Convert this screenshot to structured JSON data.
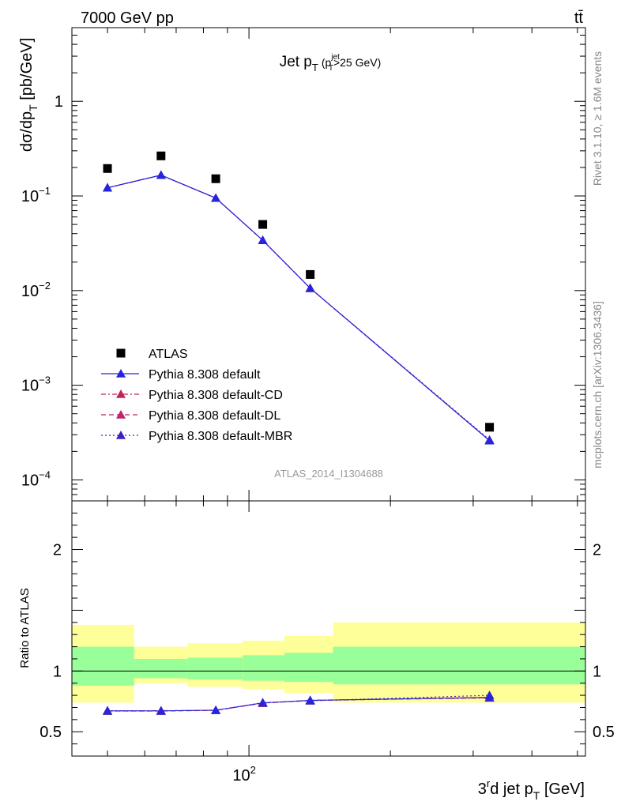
{
  "header": {
    "energy_label": "7000 GeV pp",
    "process_label": "tt̄"
  },
  "side_labels": {
    "rivet": "Rivet 3.1.10, ≥ 1.6M events",
    "mcplots": "mcplots.cern.ch [arXiv:1306.3436]"
  },
  "analysis_id": "ATLAS_2014_I1304688",
  "chart_data": [
    {
      "type": "scatter",
      "title": "Jet p_T (p_T^jet>25 GeV)",
      "title_main": "Jet p",
      "title_sub": "T",
      "title_paren_open": "(p",
      "title_paren_sup": "jet",
      "title_paren_sub": "T",
      "title_paren_rest": ">25 GeV)",
      "ylabel": "dσ/dp_T [pb/GeV]",
      "ylabel_main": "dσ/dp",
      "ylabel_sub": "T",
      "ylabel_rest": " [pb/GeV]",
      "xscale": "log",
      "yscale": "log",
      "xlim": [
        42,
        520
      ],
      "ylim": [
        6e-05,
        6
      ],
      "x": [
        50,
        65,
        85,
        107,
        135,
        325
      ],
      "xtick_major": [
        100
      ],
      "xtick_major_labels": [
        "10"
      ],
      "xtick_major_exp": [
        "2"
      ],
      "ytick_labels": [
        {
          "value": 1,
          "base": "1",
          "exp": ""
        },
        {
          "value": 0.1,
          "base": "10",
          "exp": "−1"
        },
        {
          "value": 0.01,
          "base": "10",
          "exp": "−2"
        },
        {
          "value": 0.001,
          "base": "10",
          "exp": "−3"
        },
        {
          "value": 0.0001,
          "base": "10",
          "exp": "−4"
        }
      ],
      "legend_placement": "bottom-left",
      "series": [
        {
          "name": "ATLAS",
          "marker": "square",
          "color": "#000000",
          "line": "none",
          "values": [
            0.195,
            0.265,
            0.152,
            0.05,
            0.0148,
            0.00036
          ]
        },
        {
          "name": "Pythia 8.308 default",
          "marker": "triangle",
          "color": "#2525dd",
          "line": "solid",
          "values": [
            0.122,
            0.166,
            0.095,
            0.034,
            0.0106,
            0.00026
          ]
        },
        {
          "name": "Pythia 8.308 default-CD",
          "marker": "triangle",
          "color": "#c0245c",
          "line": "dashdot",
          "values": [
            0.122,
            0.166,
            0.095,
            0.034,
            0.0106,
            0.00026
          ]
        },
        {
          "name": "Pythia 8.308 default-DL",
          "marker": "triangle",
          "color": "#c0246c",
          "line": "dashed",
          "values": [
            0.122,
            0.166,
            0.095,
            0.034,
            0.0106,
            0.00026
          ]
        },
        {
          "name": "Pythia 8.308 default-MBR",
          "marker": "triangle",
          "color": "#4020c0",
          "line": "dotted",
          "values": [
            0.122,
            0.166,
            0.095,
            0.034,
            0.0106,
            0.000265
          ]
        }
      ]
    },
    {
      "type": "scatter",
      "ylabel": "Ratio to ATLAS",
      "xlabel": "3^rd jet p_T [GeV]",
      "xlabel_main": "3",
      "xlabel_sup": "r",
      "xlabel_mid": "d jet p",
      "xlabel_sub": "T",
      "xlabel_rest": " [GeV]",
      "xscale": "log",
      "xlim": [
        42,
        520
      ],
      "ylim": [
        0.3,
        2.4
      ],
      "ytick_labels": [
        {
          "value": 0.5,
          "label": "0.5"
        },
        {
          "value": 1,
          "label": "1"
        },
        {
          "value": 2,
          "label": "2"
        }
      ],
      "bin_edges": [
        42,
        57,
        74,
        97,
        119,
        151,
        520
      ],
      "band_total": [
        [
          0.74,
          1.38
        ],
        [
          0.9,
          1.2
        ],
        [
          0.87,
          1.23
        ],
        [
          0.85,
          1.25
        ],
        [
          0.82,
          1.29
        ],
        [
          0.74,
          1.4
        ]
      ],
      "band_stat": [
        [
          0.88,
          1.2
        ],
        [
          0.94,
          1.1
        ],
        [
          0.93,
          1.11
        ],
        [
          0.92,
          1.13
        ],
        [
          0.91,
          1.15
        ],
        [
          0.89,
          1.2
        ]
      ],
      "x": [
        50,
        65,
        85,
        107,
        135,
        325
      ],
      "series": [
        {
          "name": "Pythia 8.308 default",
          "color": "#2525dd",
          "line": "solid",
          "values": [
            0.672,
            0.672,
            0.678,
            0.738,
            0.758,
            0.783
          ]
        },
        {
          "name": "Pythia 8.308 default-CD",
          "color": "#c0245c",
          "line": "dashdot",
          "values": [
            0.672,
            0.674,
            0.676,
            0.735,
            0.76,
            0.778
          ]
        },
        {
          "name": "Pythia 8.308 default-DL",
          "color": "#c0246c",
          "line": "dashed",
          "values": [
            0.67,
            0.67,
            0.676,
            0.736,
            0.757,
            0.78
          ]
        },
        {
          "name": "Pythia 8.308 default-MBR",
          "color": "#4020c0",
          "line": "dotted",
          "values": [
            0.674,
            0.672,
            0.677,
            0.74,
            0.755,
            0.8
          ]
        }
      ],
      "colors": {
        "band_total": "#ffff99",
        "band_stat": "#99ff99"
      }
    }
  ]
}
